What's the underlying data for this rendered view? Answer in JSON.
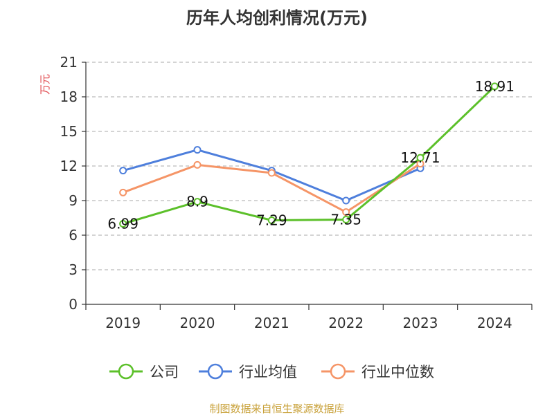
{
  "chart_data": {
    "type": "line",
    "title": "历年人均创利情况(万元)",
    "ylabel": "万元",
    "categories": [
      "2019",
      "2020",
      "2021",
      "2022",
      "2023",
      "2024"
    ],
    "ylim": [
      0,
      21
    ],
    "yticks": [
      0,
      3,
      6,
      9,
      12,
      15,
      18,
      21
    ],
    "grid": "horizontal-dashed",
    "legend_position": "bottom",
    "series": [
      {
        "name": "公司",
        "color": "#5cc02a",
        "values": [
          6.99,
          8.9,
          7.29,
          7.35,
          12.71,
          18.91
        ],
        "data_labels": [
          "6.99",
          "8.9",
          "7.29",
          "7.35",
          "12.71",
          "18.91"
        ]
      },
      {
        "name": "行业均值",
        "color": "#4e7fdc",
        "values": [
          11.6,
          13.4,
          11.6,
          9.0,
          11.8,
          null
        ]
      },
      {
        "name": "行业中位数",
        "color": "#f59567",
        "values": [
          9.7,
          12.1,
          11.4,
          8.0,
          12.2,
          null
        ]
      }
    ]
  },
  "ylabel_color": "#e0474c",
  "source_text": "制图数据来自恒生聚源数据库",
  "source_color": "#c9a23b"
}
